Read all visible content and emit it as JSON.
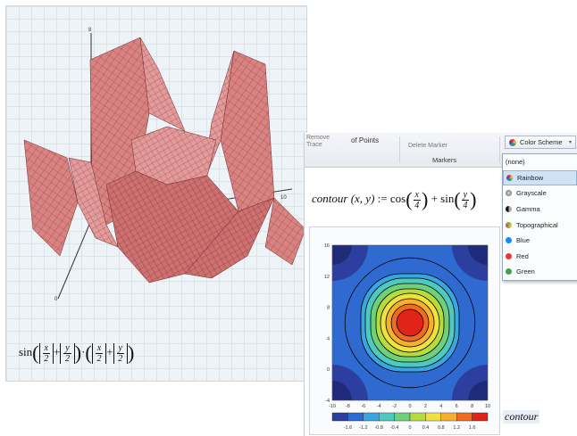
{
  "left_panel": {
    "formula": {
      "func": "sin",
      "x_var": "x",
      "y_var": "y",
      "denom": "2",
      "plus": "+",
      "dot": "·"
    },
    "axis_labels": {
      "z": "8",
      "x": "10",
      "y": "0",
      "side": "3"
    },
    "surface_color": "#d97f7f"
  },
  "ribbon": {
    "remove_trace": "Remove Trace",
    "of_points": "of Points",
    "delete_marker": "Delete Marker",
    "markers_group": "Markers",
    "color_scheme_button": "Color Scheme"
  },
  "color_scheme_menu": {
    "selected": "Rainbow",
    "items": [
      {
        "label": "(none)",
        "color": ""
      },
      {
        "label": "Rainbow",
        "color": "#9c27b0"
      },
      {
        "label": "Grayscale",
        "color": "#555555"
      },
      {
        "label": "Gamma",
        "color": "#333333"
      },
      {
        "label": "Topographical",
        "color": "#7cb342"
      },
      {
        "label": "Blue",
        "color": "#1e88e5"
      },
      {
        "label": "Red",
        "color": "#e53935"
      },
      {
        "label": "Green",
        "color": "#43a047"
      }
    ]
  },
  "contour_formula": {
    "name": "contour",
    "args": "(x, y)",
    "assign": ":=",
    "cos": "cos",
    "sin": "sin",
    "x": "x",
    "y": "y",
    "denom": "4",
    "plus": "+"
  },
  "contour_plot": {
    "x_ticks": [
      "-10",
      "-8",
      "-6",
      "-4",
      "-2",
      "0",
      "2",
      "4",
      "6",
      "8",
      "10"
    ],
    "y_ticks": [
      "-4",
      "0",
      "4",
      "8",
      "12",
      "16"
    ],
    "colorbar_ticks": [
      "-1.6",
      "-1.2",
      "-0.8",
      "-0.4",
      "0",
      "0.4",
      "0.8",
      "1.2",
      "1.6"
    ],
    "colorbar_colors": [
      "#2c3e9e",
      "#2f6ad0",
      "#3aa6e0",
      "#4fc9c0",
      "#6fd07a",
      "#b5dc3c",
      "#f1e23a",
      "#f6b02e",
      "#ee6b22",
      "#e2231a"
    ],
    "label": "contour"
  }
}
